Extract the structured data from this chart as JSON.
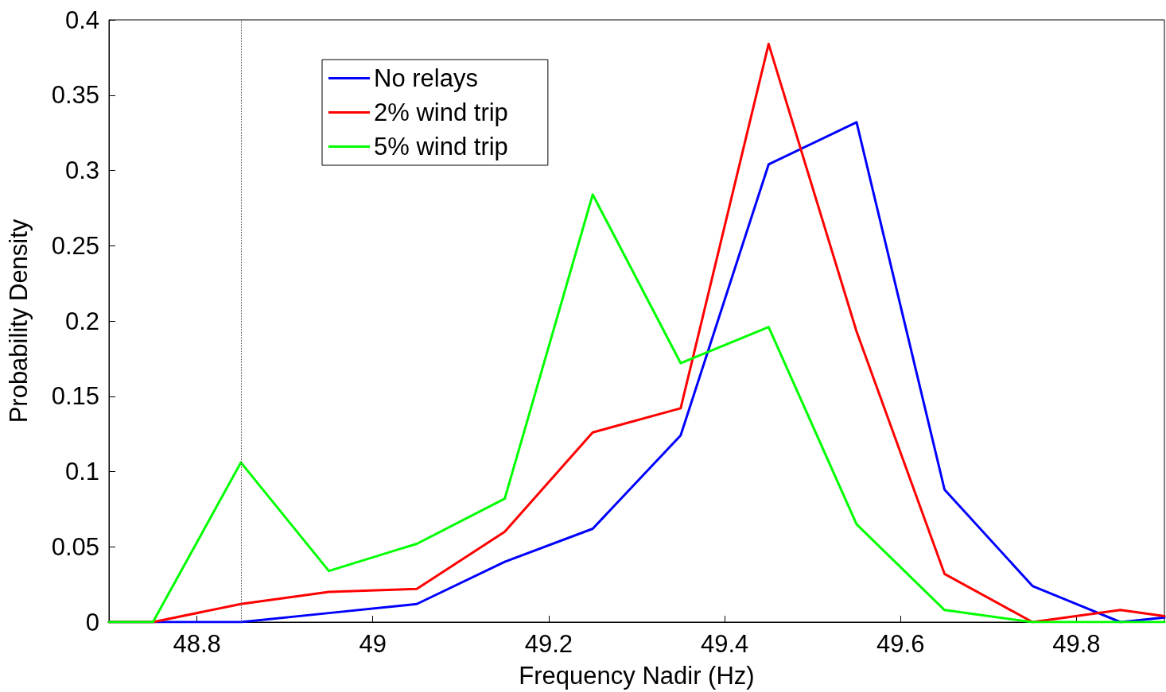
{
  "chart_data": {
    "type": "line",
    "xlabel": "Frequency Nadir (Hz)",
    "ylabel": "Probability Density",
    "x": [
      48.7,
      48.75,
      48.85,
      48.95,
      49.05,
      49.15,
      49.25,
      49.35,
      49.45,
      49.55,
      49.65,
      49.75,
      49.85,
      49.9
    ],
    "series": [
      {
        "name": "No relays",
        "color": "#0000ff",
        "values": [
          0,
          0,
          0,
          0.006,
          0.012,
          0.04,
          0.062,
          0.124,
          0.304,
          0.332,
          0.088,
          0.024,
          0,
          0.003
        ]
      },
      {
        "name": "2% wind trip",
        "color": "#ff0000",
        "values": [
          0,
          0,
          0.012,
          0.02,
          0.022,
          0.06,
          0.126,
          0.142,
          0.384,
          0.193,
          0.032,
          0,
          0.008,
          0.004
        ]
      },
      {
        "name": "5% wind trip",
        "color": "#00ff00",
        "values": [
          0,
          0,
          0.106,
          0.034,
          0.052,
          0.082,
          0.284,
          0.172,
          0.196,
          0.065,
          0.008,
          0,
          0,
          0
        ]
      }
    ],
    "xlim": [
      48.7,
      49.9
    ],
    "xticks": [
      48.8,
      49,
      49.2,
      49.4,
      49.6,
      49.8
    ],
    "ylim": [
      0,
      0.4
    ],
    "yticks": [
      0,
      0.05,
      0.1,
      0.15,
      0.2,
      0.25,
      0.3,
      0.35,
      0.4
    ],
    "ref_lines": [
      {
        "axis": "x",
        "value": 48.85,
        "color": "#555555",
        "line_style": "dotted"
      }
    ],
    "grid": false,
    "legend": "top left",
    "marker": "none",
    "line_style": "solid"
  }
}
